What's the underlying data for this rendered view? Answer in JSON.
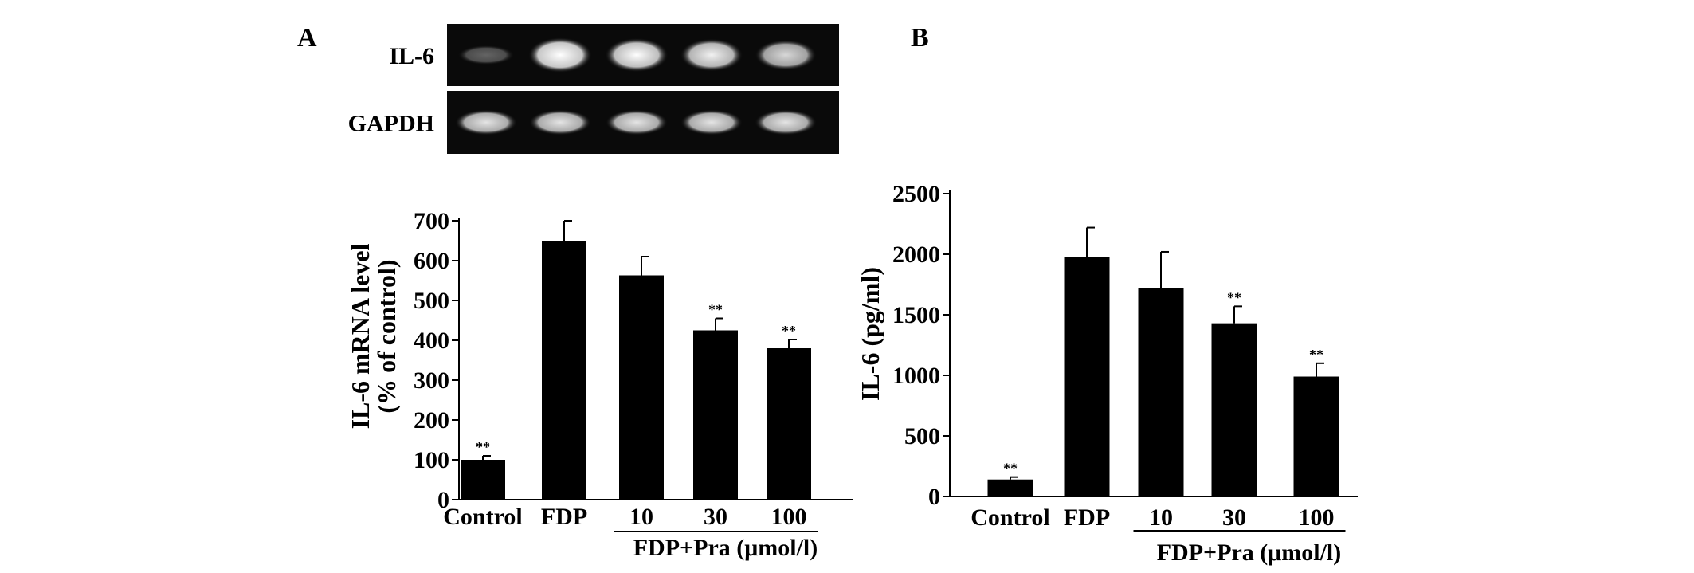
{
  "panels": {
    "a_label": "A",
    "b_label": "B"
  },
  "gel": {
    "rows": [
      {
        "label": "IL-6",
        "intensities": [
          0.35,
          1.0,
          0.95,
          0.9,
          0.8
        ]
      },
      {
        "label": "GAPDH",
        "intensities": [
          0.85,
          0.85,
          0.85,
          0.85,
          0.85
        ]
      }
    ]
  },
  "chart_data": [
    {
      "type": "bar",
      "panel": "A",
      "categories": [
        "Control",
        "FDP",
        "10",
        "30",
        "100"
      ],
      "values": [
        100,
        650,
        563,
        425,
        380
      ],
      "errors": [
        10,
        50,
        47,
        30,
        22
      ],
      "significance": [
        "**",
        "",
        "",
        "**",
        "**"
      ],
      "ylabel_line1": "IL-6 mRNA level",
      "ylabel_line2": "(% of control)",
      "group_label": "FDP+Pra (μmol/l)",
      "group_categories": [
        2,
        4
      ],
      "ylim": [
        0,
        700
      ],
      "yticks": [
        0,
        100,
        200,
        300,
        400,
        500,
        600,
        700
      ]
    },
    {
      "type": "bar",
      "panel": "B",
      "categories": [
        "Control",
        "FDP",
        "10",
        "30",
        "100"
      ],
      "values": [
        140,
        1980,
        1720,
        1430,
        990
      ],
      "errors": [
        20,
        240,
        300,
        140,
        110
      ],
      "significance": [
        "**",
        "",
        "",
        "**",
        "**"
      ],
      "ylabel_line1": "IL-6  (pg/ml)",
      "group_label": "FDP+Pra (μmol/l)",
      "group_categories": [
        2,
        4
      ],
      "ylim": [
        0,
        2500
      ],
      "yticks": [
        0,
        500,
        1000,
        1500,
        2000,
        2500
      ]
    }
  ]
}
